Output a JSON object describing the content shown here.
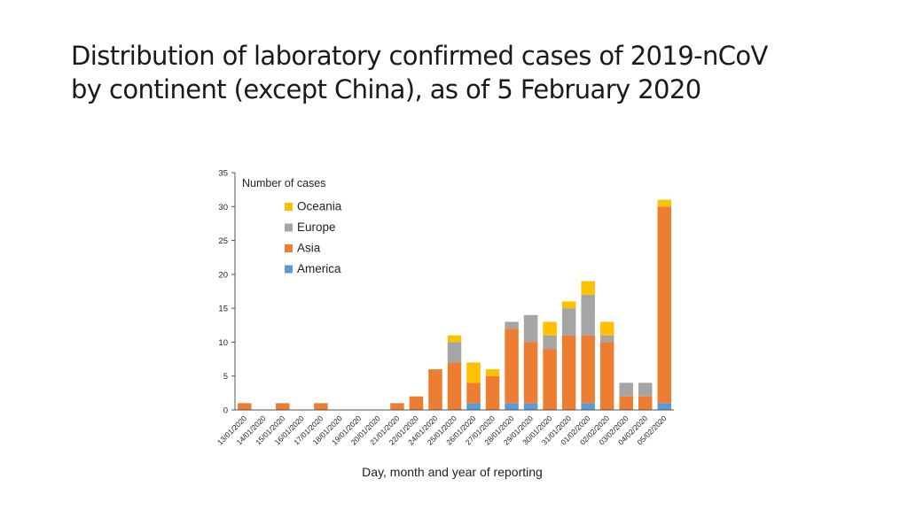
{
  "slide": {
    "title_line1": "Distribution of laboratory confirmed cases of 2019-nCoV",
    "title_line2": "by continent (except China), as of 5 February 2020"
  },
  "chart_data": {
    "type": "bar",
    "stacked": true,
    "ylabel": "Number of cases",
    "xlabel": "Day, month and year of reporting",
    "ylim": [
      0,
      35
    ],
    "yticks": [
      0,
      5,
      10,
      15,
      20,
      25,
      30,
      35
    ],
    "legend_position": "top-left",
    "grid": false,
    "categories": [
      "13/01/2020",
      "14/01/2020",
      "15/01/2020",
      "16/01/2020",
      "17/01/2020",
      "18/01/2020",
      "19/01/2020",
      "20/01/2020",
      "21/01/2020",
      "22/01/2020",
      "24/01/2020",
      "25/01/2020",
      "26/01/2020",
      "27/01/2020",
      "28/01/2020",
      "29/01/2020",
      "30/01/2020",
      "31/01/2020",
      "01/02/2020",
      "02/02/2020",
      "03/02/2020",
      "04/02/2020",
      "05/02/2020"
    ],
    "series": [
      {
        "name": "America",
        "color": "#5b9bd5",
        "values": [
          0,
          0,
          0,
          0,
          0,
          0,
          0,
          0,
          0,
          0,
          0,
          0,
          1,
          0,
          1,
          1,
          0,
          0,
          1,
          0,
          0,
          0,
          1
        ]
      },
      {
        "name": "Asia",
        "color": "#ed7d31",
        "values": [
          1,
          0,
          1,
          0,
          1,
          0,
          0,
          0,
          1,
          2,
          6,
          7,
          3,
          5,
          11,
          9,
          9,
          11,
          10,
          10,
          2,
          2,
          29
        ]
      },
      {
        "name": "Europe",
        "color": "#a5a5a5",
        "values": [
          0,
          0,
          0,
          0,
          0,
          0,
          0,
          0,
          0,
          0,
          0,
          3,
          0,
          0,
          1,
          4,
          2,
          4,
          6,
          1,
          2,
          2,
          0
        ]
      },
      {
        "name": "Oceania",
        "color": "#ffc000",
        "values": [
          0,
          0,
          0,
          0,
          0,
          0,
          0,
          0,
          0,
          0,
          0,
          1,
          3,
          1,
          0,
          0,
          2,
          1,
          2,
          2,
          0,
          0,
          1
        ]
      }
    ],
    "legend_order": [
      "Oceania",
      "Europe",
      "Asia",
      "America"
    ]
  }
}
